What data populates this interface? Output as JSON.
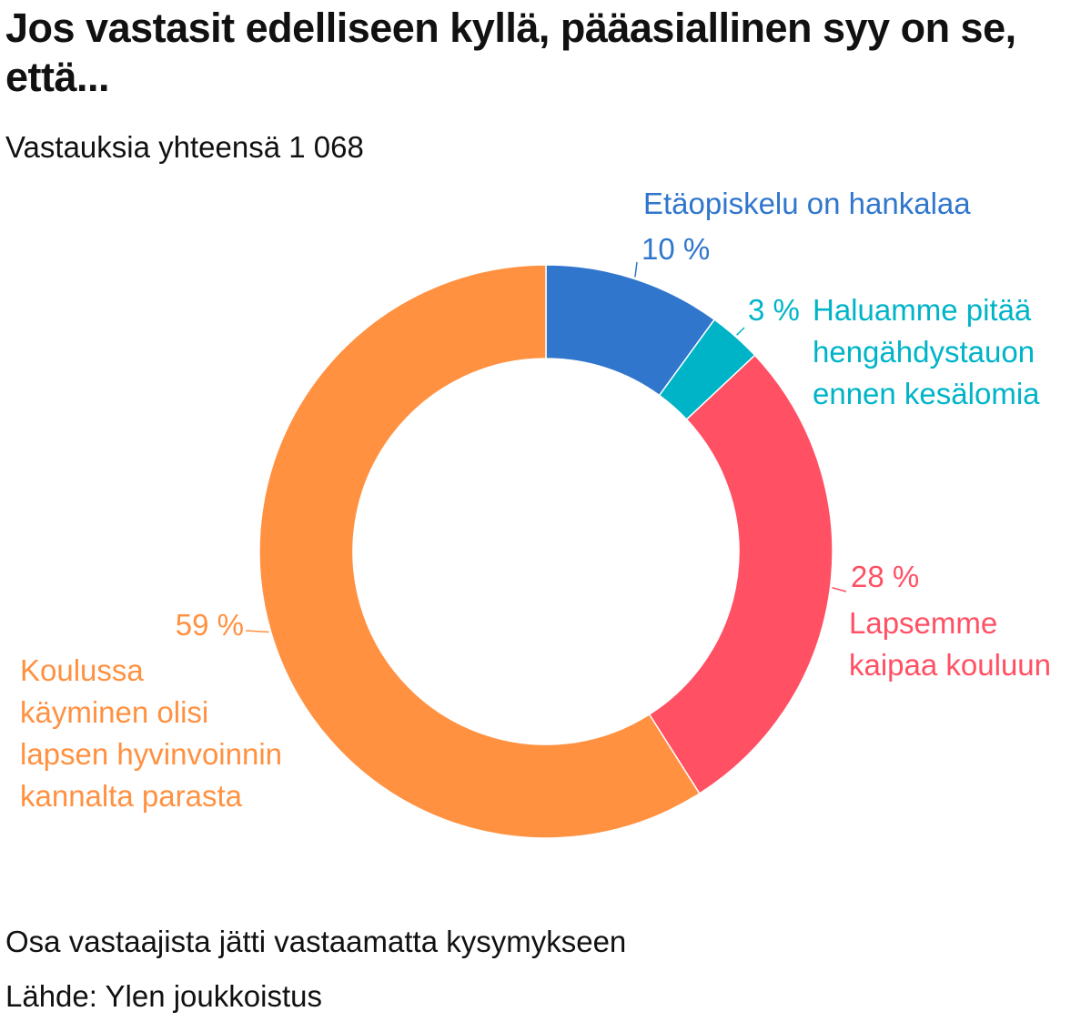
{
  "title": "Jos vastasit edelliseen kyllä, pääasiallinen syy on se, että...",
  "subtitle": "Vastauksia yhteensä 1 068",
  "note": "Osa vastaajista jätti vastaamatta kysymykseen",
  "source": "Lähde: Ylen joukkoistus",
  "chart_data": {
    "type": "pie",
    "donut": true,
    "series": [
      {
        "name": "Etäopiskelu on hankalaa",
        "value": 10,
        "label": "10 %",
        "color": "#3076cc"
      },
      {
        "name": "Haluamme pitää hengähdystauon ennen kesälomia",
        "value": 3,
        "label": "3 %",
        "color": "#00b4c8"
      },
      {
        "name": "Lapsemme kaipaa kouluun",
        "value": 28,
        "label": "28 %",
        "color": "#ff5064"
      },
      {
        "name": "Koulussa käyminen olisi lapsen hyvinvoinnin kannalta parasta",
        "value": 59,
        "label": "59 %",
        "color": "#ff9141"
      }
    ]
  }
}
